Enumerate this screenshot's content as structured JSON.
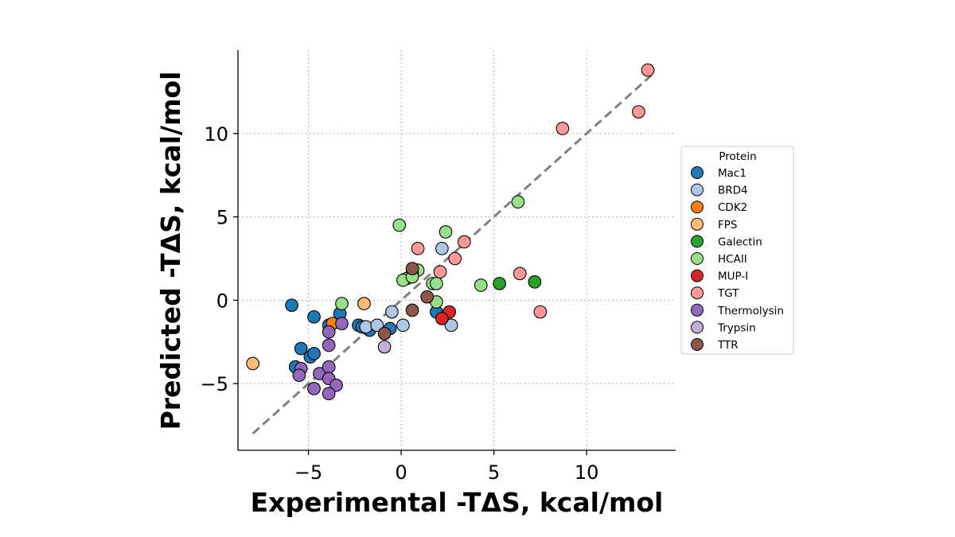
{
  "chart_data": {
    "type": "scatter",
    "xlabel": "Experimental -TΔS, kcal/mol",
    "ylabel": "Predicted -TΔS, kcal/mol",
    "xlim": [
      -8.8,
      14.8
    ],
    "ylim": [
      -9.0,
      15.0
    ],
    "xticks": [
      -5,
      0,
      5,
      10
    ],
    "yticks": [
      -5,
      0,
      5,
      10
    ],
    "xtick_labels": [
      "−5",
      "0",
      "5",
      "10"
    ],
    "ytick_labels": [
      "−5",
      "0",
      "5",
      "10"
    ],
    "grid": true,
    "diagonal": {
      "from": [
        -8.0,
        -8.0
      ],
      "to": [
        13.5,
        13.5
      ],
      "style": "dashed",
      "color": "#808080"
    },
    "legend": {
      "title": "Protein",
      "placement": "right"
    },
    "series": [
      {
        "name": "Mac1",
        "color": "#1f77b4",
        "points": [
          [
            -5.9,
            -0.3
          ],
          [
            -4.7,
            -1.0
          ],
          [
            -3.9,
            -1.5
          ],
          [
            -2.3,
            -1.5
          ],
          [
            -2.1,
            -1.6
          ],
          [
            -1.7,
            -1.8
          ],
          [
            -3.3,
            -0.8
          ],
          [
            -5.4,
            -2.9
          ],
          [
            -5.7,
            -4.0
          ],
          [
            -4.9,
            -3.4
          ],
          [
            -4.7,
            -3.2
          ],
          [
            -0.6,
            -1.7
          ],
          [
            1.9,
            -0.7
          ]
        ]
      },
      {
        "name": "BRD4",
        "color": "#aec7e8",
        "points": [
          [
            -1.9,
            -1.6
          ],
          [
            -1.3,
            -1.5
          ],
          [
            -0.5,
            -0.7
          ],
          [
            0.1,
            -1.5
          ],
          [
            2.2,
            3.1
          ],
          [
            2.7,
            -1.5
          ]
        ]
      },
      {
        "name": "CDK2",
        "color": "#ff7f0e",
        "points": [
          [
            -3.7,
            -1.4
          ]
        ]
      },
      {
        "name": "FPS",
        "color": "#ffbb78",
        "points": [
          [
            -8.0,
            -3.8
          ],
          [
            -2.0,
            -0.2
          ]
        ]
      },
      {
        "name": "Galectin",
        "color": "#2ca02c",
        "points": [
          [
            5.3,
            1.0
          ],
          [
            7.2,
            1.1
          ]
        ]
      },
      {
        "name": "HCAII",
        "color": "#98df8a",
        "points": [
          [
            -0.1,
            4.5
          ],
          [
            2.4,
            4.1
          ],
          [
            6.3,
            5.9
          ],
          [
            4.3,
            0.9
          ],
          [
            0.9,
            1.8
          ],
          [
            0.6,
            1.6
          ],
          [
            0.3,
            1.3
          ],
          [
            0.1,
            1.2
          ],
          [
            0.6,
            1.4
          ],
          [
            1.7,
            1.0
          ],
          [
            1.9,
            1.0
          ],
          [
            1.9,
            -0.1
          ],
          [
            -3.2,
            -0.2
          ]
        ]
      },
      {
        "name": "MUP-I",
        "color": "#d62728",
        "points": [
          [
            2.6,
            -0.7
          ],
          [
            2.2,
            -1.1
          ]
        ]
      },
      {
        "name": "TGT",
        "color": "#ff9896",
        "points": [
          [
            13.3,
            13.8
          ],
          [
            12.8,
            11.3
          ],
          [
            8.7,
            10.3
          ],
          [
            3.4,
            3.5
          ],
          [
            2.9,
            2.5
          ],
          [
            0.9,
            3.1
          ],
          [
            2.1,
            1.7
          ],
          [
            6.4,
            1.6
          ],
          [
            7.5,
            -0.7
          ]
        ]
      },
      {
        "name": "Thermolysin",
        "color": "#9467bd",
        "points": [
          [
            -3.9,
            -1.9
          ],
          [
            -3.9,
            -2.7
          ],
          [
            -3.2,
            -1.4
          ],
          [
            -5.4,
            -4.1
          ],
          [
            -5.5,
            -4.5
          ],
          [
            -4.4,
            -4.4
          ],
          [
            -4.7,
            -5.3
          ],
          [
            -3.9,
            -4.0
          ],
          [
            -3.9,
            -4.7
          ],
          [
            -3.5,
            -5.1
          ],
          [
            -3.9,
            -5.6
          ]
        ]
      },
      {
        "name": "Trypsin",
        "color": "#c5b0d5",
        "points": [
          [
            -0.9,
            -2.8
          ]
        ]
      },
      {
        "name": "TTR",
        "color": "#8c564b",
        "points": [
          [
            0.6,
            1.9
          ],
          [
            1.4,
            0.2
          ],
          [
            0.6,
            -0.6
          ],
          [
            -0.9,
            -2.0
          ]
        ]
      }
    ]
  }
}
